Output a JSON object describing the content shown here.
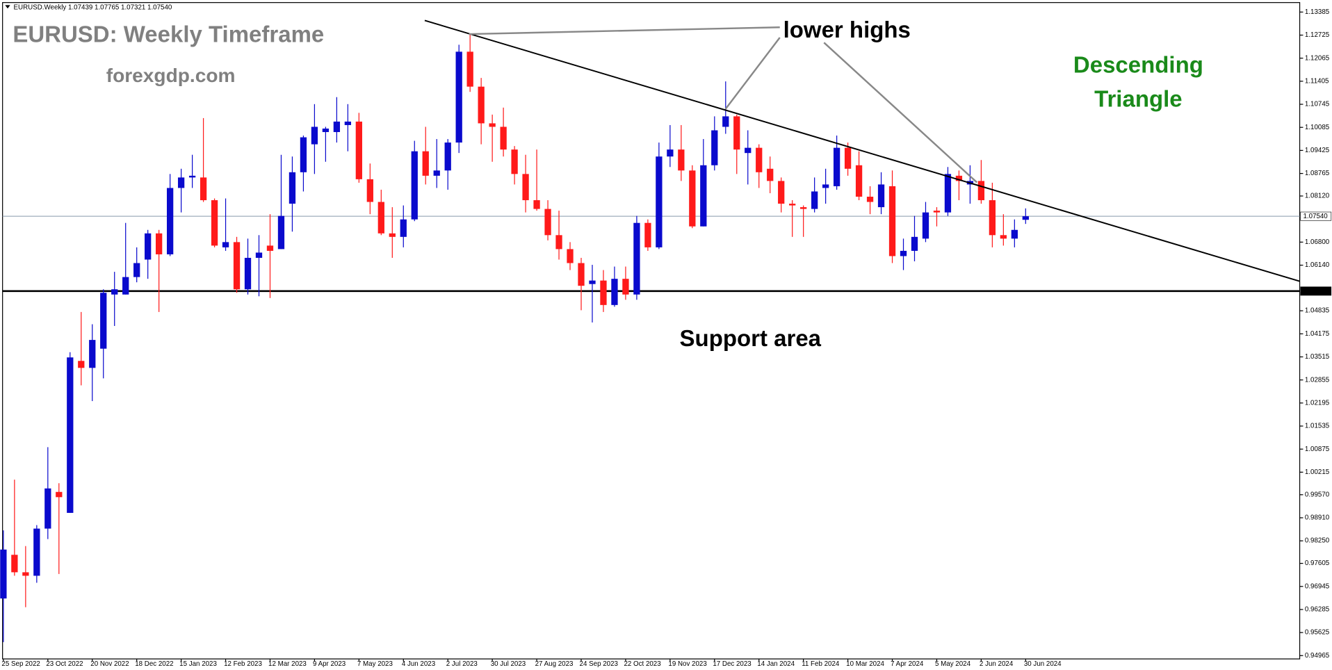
{
  "chart_data": {
    "type": "candlestick",
    "header": "EURUSD.Weekly 1.07439 1.07765 1.07321 1.07540",
    "title": "EURUSD: Weekly Timeframe",
    "subtitle": "forexgdp.com",
    "annotations": {
      "lower_highs": "lower highs",
      "pattern_line1": "Descending",
      "pattern_line2": "Triangle",
      "support_text": "Support area"
    },
    "categories": [
      "25 Sep 2022",
      null,
      null,
      null,
      "23 Oct 2022",
      null,
      null,
      null,
      "20 Nov 2022",
      null,
      null,
      null,
      "18 Dec 2022",
      null,
      null,
      null,
      "15 Jan 2023",
      null,
      null,
      null,
      "12 Feb 2023",
      null,
      null,
      null,
      "12 Mar 2023",
      null,
      null,
      null,
      "9 Apr 2023",
      null,
      null,
      null,
      "7 May 2023",
      null,
      null,
      null,
      "4 Jun 2023",
      null,
      null,
      null,
      "2 Jul 2023",
      null,
      null,
      null,
      "30 Jul 2023",
      null,
      null,
      null,
      "27 Aug 2023",
      null,
      null,
      null,
      "24 Sep 2023",
      null,
      null,
      null,
      "22 Oct 2023",
      null,
      null,
      null,
      "19 Nov 2023",
      null,
      null,
      null,
      "17 Dec 2023",
      null,
      null,
      null,
      "14 Jan 2024",
      null,
      null,
      null,
      "11 Feb 2024",
      null,
      null,
      null,
      "10 Mar 2024",
      null,
      null,
      null,
      "7 Apr 2024",
      null,
      null,
      null,
      "5 May 2024",
      null,
      null,
      null,
      "2 Jun 2024",
      null,
      null,
      null,
      "30 Jun 2024"
    ],
    "open": [
      0.966,
      0.9785,
      0.9735,
      0.9725,
      0.986,
      0.9965,
      0.9905,
      1.034,
      1.032,
      1.0375,
      1.053,
      1.053,
      1.058,
      1.063,
      1.0705,
      1.0645,
      1.0835,
      1.0865,
      1.0865,
      1.08,
      1.0665,
      1.068,
      1.0545,
      1.0635,
      1.067,
      1.066,
      1.079,
      1.088,
      1.096,
      1.0995,
      1.0995,
      1.1015,
      1.1025,
      1.086,
      1.0795,
      1.0705,
      1.0695,
      1.0745,
      1.094,
      1.087,
      1.0885,
      1.0965,
      1.1225,
      1.1125,
      1.102,
      1.101,
      1.0945,
      1.0875,
      1.08,
      1.0775,
      1.07,
      1.066,
      1.062,
      1.056,
      1.057,
      1.05,
      1.0575,
      1.053,
      1.0735,
      1.0665,
      1.0925,
      1.0945,
      1.0885,
      1.0725,
      1.09,
      1.101,
      1.104,
      1.0935,
      1.095,
      1.089,
      1.0855,
      1.079,
      1.078,
      1.0775,
      1.0835,
      1.084,
      1.095,
      1.09,
      1.081,
      1.078,
      1.084,
      1.064,
      1.0655,
      1.069,
      1.077,
      1.0765,
      1.087,
      1.0845,
      1.0855,
      1.08,
      1.07,
      1.069,
      1.07439
    ],
    "high": [
      0.9855,
      1.0,
      0.981,
      0.987,
      1.0093,
      0.999,
      1.0365,
      1.048,
      1.0445,
      1.0545,
      1.0595,
      1.0735,
      1.0665,
      1.0715,
      1.0715,
      1.0875,
      1.089,
      1.093,
      1.1035,
      1.0805,
      1.0805,
      1.0695,
      1.069,
      1.07,
      1.076,
      1.093,
      1.0925,
      1.0985,
      1.1075,
      1.101,
      1.1095,
      1.1075,
      1.105,
      1.0905,
      1.083,
      1.078,
      1.0785,
      1.097,
      1.101,
      1.0975,
      1.0975,
      1.1245,
      1.1276,
      1.115,
      1.1045,
      1.1065,
      1.0955,
      1.093,
      1.0945,
      1.08,
      1.077,
      1.068,
      1.0635,
      1.0615,
      1.06,
      1.061,
      1.061,
      1.0755,
      1.0745,
      1.0965,
      1.1015,
      1.1015,
      1.09,
      1.0975,
      1.104,
      1.114,
      1.1045,
      1.1,
      1.096,
      1.0925,
      1.0865,
      1.08,
      1.0785,
      1.0865,
      1.089,
      1.0985,
      1.0965,
      1.094,
      1.084,
      1.088,
      1.0885,
      1.069,
      1.0755,
      1.0795,
      1.078,
      1.0895,
      1.0885,
      1.09,
      1.0915,
      1.085,
      1.076,
      1.0745,
      1.07765
    ],
    "low": [
      0.9535,
      0.9725,
      0.9635,
      0.9705,
      0.983,
      0.973,
      0.9905,
      1.027,
      1.0225,
      1.029,
      1.044,
      1.053,
      1.0565,
      1.0575,
      1.048,
      1.064,
      1.0765,
      1.0835,
      1.0795,
      1.0665,
      1.0655,
      1.0535,
      1.053,
      1.0525,
      1.052,
      1.066,
      1.071,
      1.0825,
      1.0875,
      1.091,
      1.0965,
      1.094,
      1.085,
      1.076,
      1.07,
      1.0635,
      1.0665,
      1.074,
      1.0845,
      1.0835,
      1.083,
      1.0935,
      1.111,
      1.096,
      1.091,
      1.0925,
      1.0845,
      1.0765,
      1.077,
      1.0685,
      1.063,
      1.06,
      1.0485,
      1.045,
      1.048,
      1.0495,
      1.0515,
      1.0515,
      1.0655,
      1.066,
      1.0895,
      1.0855,
      1.072,
      1.0725,
      1.0885,
      1.099,
      1.0875,
      1.0845,
      1.0835,
      1.082,
      1.0765,
      1.0695,
      1.0695,
      1.0765,
      1.079,
      1.083,
      1.087,
      1.08,
      1.076,
      1.076,
      1.062,
      1.06,
      1.0625,
      1.068,
      1.0725,
      1.0755,
      1.08,
      1.079,
      1.079,
      1.0665,
      1.067,
      1.0665,
      1.07321
    ],
    "close": [
      0.98,
      0.9735,
      0.9725,
      0.986,
      0.9975,
      0.995,
      1.035,
      1.032,
      1.04,
      1.0535,
      1.0545,
      1.058,
      1.062,
      1.0705,
      1.0645,
      1.0835,
      1.0865,
      1.087,
      1.08,
      1.067,
      1.068,
      1.0545,
      1.0635,
      1.065,
      1.0655,
      1.0755,
      1.088,
      1.098,
      1.101,
      1.1005,
      1.1025,
      1.1025,
      1.086,
      1.0795,
      1.0705,
      1.0695,
      1.0745,
      1.094,
      1.087,
      1.0885,
      1.0965,
      1.1225,
      1.1125,
      1.102,
      1.101,
      1.0945,
      1.0875,
      1.08,
      1.0775,
      1.07,
      1.066,
      1.062,
      1.0555,
      1.057,
      1.05,
      1.0575,
      1.053,
      1.0735,
      1.0665,
      1.0925,
      1.0945,
      1.0885,
      1.0725,
      1.09,
      1.1,
      1.104,
      1.0945,
      1.095,
      1.088,
      1.0855,
      1.079,
      1.0785,
      1.0775,
      1.0825,
      1.0845,
      1.095,
      1.089,
      1.081,
      1.0795,
      1.0845,
      1.064,
      1.0655,
      1.0695,
      1.0765,
      1.0765,
      1.0875,
      1.0855,
      1.0855,
      1.08,
      1.07,
      1.069,
      1.0715,
      1.0754
    ],
    "up_color": "#0a0acd",
    "down_color": "#ff1a1a",
    "ylim": [
      0.9487,
      1.1373
    ],
    "yticks": [
      1.13385,
      1.12725,
      1.12065,
      1.11405,
      1.10745,
      1.10085,
      1.09425,
      1.08765,
      {
        "value": 1.0812,
        "label": "1.08120"
      },
      {
        "value": 1.068,
        "label": "1.06800"
      },
      {
        "value": 1.0614,
        "label": "1.06140"
      },
      1.04835,
      1.04175,
      1.03515,
      1.02855,
      1.02195,
      1.01535,
      1.00875,
      1.00215,
      {
        "value": 0.9957,
        "label": "0.99570"
      },
      {
        "value": 0.9891,
        "label": "0.98910"
      },
      {
        "value": 0.9825,
        "label": "0.98250"
      },
      0.97605,
      0.96945,
      0.96285,
      0.95625,
      0.94965
    ],
    "support": 1.05398,
    "support_color": "#000000",
    "last_price": {
      "value": 1.0754,
      "label": "1.07540"
    },
    "last_price_color": "#8899aa"
  }
}
